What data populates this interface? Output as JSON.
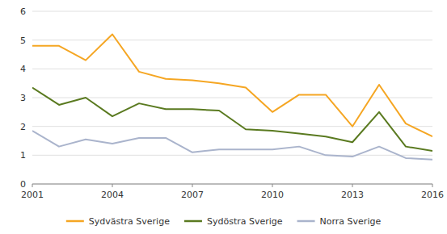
{
  "chart_data": {
    "type": "line",
    "x": [
      2001,
      2002,
      2003,
      2004,
      2005,
      2006,
      2007,
      2008,
      2009,
      2010,
      2011,
      2012,
      2013,
      2014,
      2015,
      2016
    ],
    "series": [
      {
        "name": "Sydvästra Sverige",
        "color": "#f5a623",
        "values": [
          4.8,
          4.8,
          4.3,
          5.2,
          3.9,
          3.65,
          3.6,
          3.5,
          3.35,
          2.5,
          3.1,
          3.1,
          2.0,
          3.45,
          2.1,
          1.65
        ]
      },
      {
        "name": "Sydöstra Sverige",
        "color": "#5a7a20",
        "values": [
          3.35,
          2.75,
          3.0,
          2.35,
          2.8,
          2.6,
          2.6,
          2.55,
          1.9,
          1.85,
          1.75,
          1.65,
          1.45,
          2.5,
          1.3,
          1.15
        ]
      },
      {
        "name": "Norra Sverige",
        "color": "#aab4cc",
        "values": [
          1.85,
          1.3,
          1.55,
          1.4,
          1.6,
          1.6,
          1.1,
          1.2,
          1.2,
          1.2,
          1.3,
          1.0,
          0.95,
          1.3,
          0.9,
          0.85
        ]
      }
    ],
    "xlim": [
      2001,
      2016
    ],
    "xticks": [
      2001,
      2004,
      2007,
      2010,
      2013,
      2016
    ],
    "ylim": [
      0,
      6
    ],
    "yticks": [
      0,
      1,
      2,
      3,
      4,
      5,
      6
    ],
    "grid": true,
    "legend": "bottom"
  }
}
